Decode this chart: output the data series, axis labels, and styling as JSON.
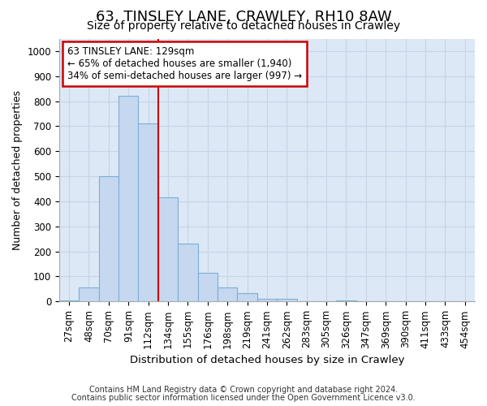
{
  "title": "63, TINSLEY LANE, CRAWLEY, RH10 8AW",
  "subtitle": "Size of property relative to detached houses in Crawley",
  "xlabel": "Distribution of detached houses by size in Crawley",
  "ylabel": "Number of detached properties",
  "footnote1": "Contains HM Land Registry data © Crown copyright and database right 2024.",
  "footnote2": "Contains public sector information licensed under the Open Government Licence v3.0.",
  "categories": [
    "27sqm",
    "48sqm",
    "70sqm",
    "91sqm",
    "112sqm",
    "134sqm",
    "155sqm",
    "176sqm",
    "198sqm",
    "219sqm",
    "241sqm",
    "262sqm",
    "283sqm",
    "305sqm",
    "326sqm",
    "347sqm",
    "369sqm",
    "390sqm",
    "411sqm",
    "433sqm",
    "454sqm"
  ],
  "values": [
    5,
    55,
    500,
    820,
    710,
    415,
    230,
    115,
    55,
    35,
    10,
    10,
    0,
    0,
    5,
    0,
    0,
    0,
    0,
    0,
    0
  ],
  "bar_color": "#c5d8f0",
  "bar_edge_color": "#7bafd4",
  "property_line_label": "63 TINSLEY LANE: 129sqm",
  "annotation_line1": "← 65% of detached houses are smaller (1,940)",
  "annotation_line2": "34% of semi-detached houses are larger (997) →",
  "annotation_box_color": "#ffffff",
  "annotation_box_edge": "#cc0000",
  "vline_color": "#cc0000",
  "ylim": [
    0,
    1050
  ],
  "yticks": [
    0,
    100,
    200,
    300,
    400,
    500,
    600,
    700,
    800,
    900,
    1000
  ],
  "grid_color": "#c8d4e8",
  "bg_color": "#dce8f5",
  "title_fontsize": 13,
  "subtitle_fontsize": 10,
  "tick_fontsize": 8.5,
  "ylabel_fontsize": 9,
  "xlabel_fontsize": 9.5,
  "footnote_fontsize": 7
}
